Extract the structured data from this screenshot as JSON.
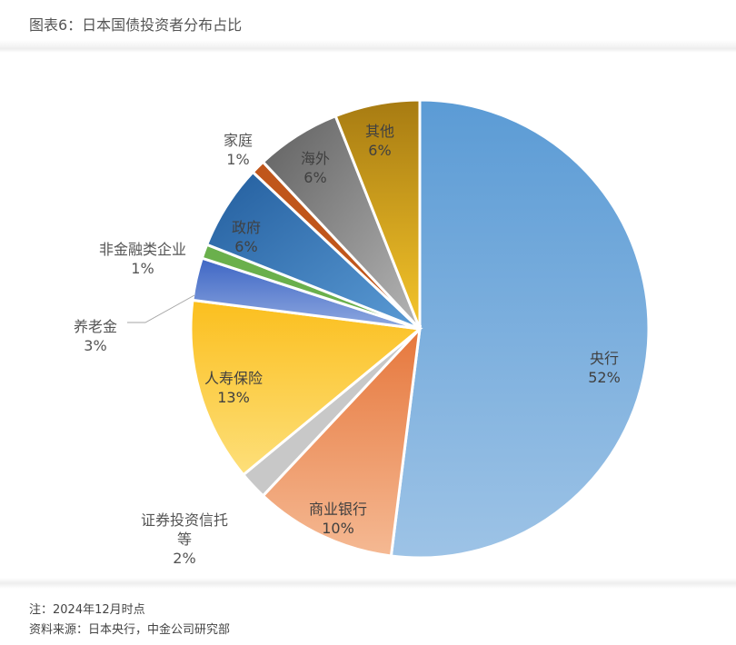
{
  "title": "图表6：日本国债投资者分布占比",
  "notes": {
    "note": "注：2024年12月时点",
    "source": "资料来源：日本央行，中金公司研究部"
  },
  "chart_data": {
    "type": "pie",
    "title": "图表6：日本国债投资者分布占比",
    "start_angle": "12 o'clock, clockwise",
    "categories": [
      "央行",
      "商业银行",
      "证券投资信托等",
      "人寿保险",
      "养老金",
      "非金融类企业",
      "政府",
      "家庭",
      "海外",
      "其他"
    ],
    "values": [
      52,
      10,
      2,
      13,
      3,
      1,
      6,
      1,
      6,
      6
    ],
    "labels": [
      "52%",
      "10%",
      "2%",
      "13%",
      "3%",
      "1%",
      "6%",
      "1%",
      "6%",
      "6%"
    ],
    "colors": [
      "#7aaadf",
      "#eb8a55",
      "#c0c0c0",
      "#fcc42d",
      "#4a72c8",
      "#5fae47",
      "#2f6bb0",
      "#b65218",
      "#7a7a7a",
      "#c39a1c"
    ]
  }
}
